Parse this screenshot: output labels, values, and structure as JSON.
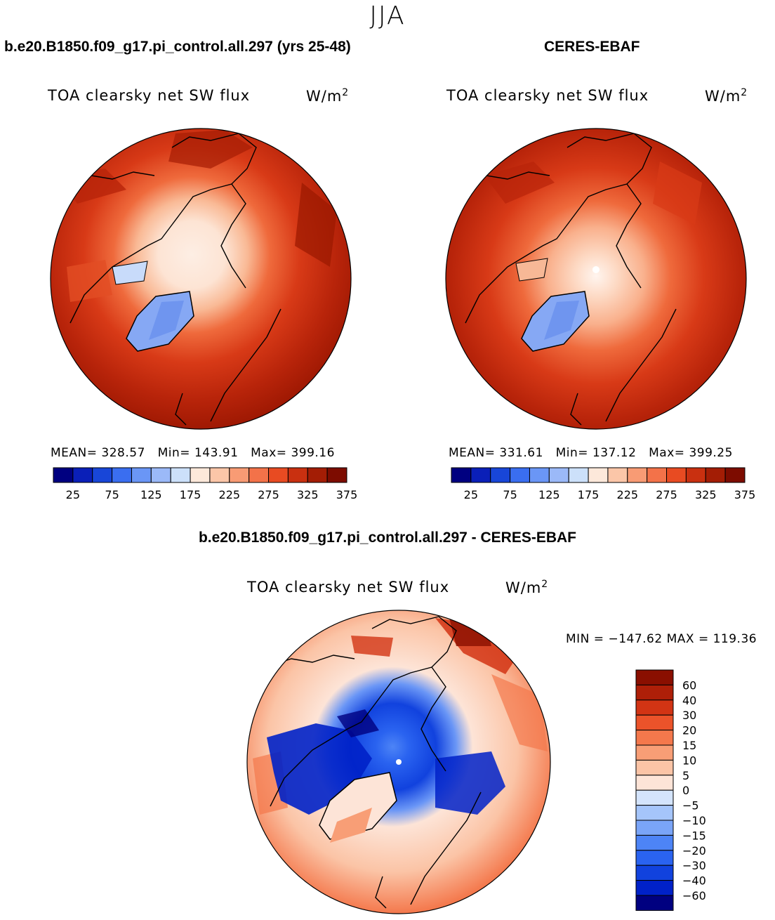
{
  "season": "JJA",
  "colors": {
    "div_scale": [
      "#000080",
      "#0021c8",
      "#1142de",
      "#2a63f0",
      "#4d84f6",
      "#7aa5f8",
      "#a5c5fa",
      "#d4e4fc",
      "#fde4d7",
      "#fbc4a6",
      "#f89e76",
      "#f4784c",
      "#eb532a",
      "#d23414",
      "#ae1f08",
      "#8a0f00"
    ],
    "flux_scale": [
      "#000080",
      "#0a1fb8",
      "#1846d8",
      "#3a6ef0",
      "#6a96f6",
      "#9bb9f8",
      "#cce0fa",
      "#fde8da",
      "#fbc6a8",
      "#f89b74",
      "#f37249",
      "#e84b22",
      "#c93010",
      "#a31d05",
      "#7d0c00"
    ]
  },
  "panels": {
    "model": {
      "title": "b.e20.B1850.f09_g17.pi_control.all.297 (yrs 25-48)",
      "variable": "TOA clearsky net SW flux",
      "units": "W/m",
      "units_exp": "2",
      "mean_label": "MEAN=",
      "mean": "328.57",
      "min_label": "Min=",
      "min": "143.91",
      "max_label": "Max=",
      "max": "399.16"
    },
    "obs": {
      "title": "CERES-EBAF",
      "variable": "TOA clearsky net SW flux",
      "units": "W/m",
      "units_exp": "2",
      "mean_label": "MEAN=",
      "mean": "331.61",
      "min_label": "Min=",
      "min": "137.12",
      "max_label": "Max=",
      "max": "399.25"
    },
    "diff": {
      "title": "b.e20.B1850.f09_g17.pi_control.all.297 - CERES-EBAF",
      "variable": "TOA clearsky net SW flux",
      "units": "W/m",
      "units_exp": "2",
      "min_label": "MIN =",
      "min": "−147.62",
      "max_label": "MAX =",
      "max": "119.36"
    }
  },
  "chart_data": [
    {
      "type": "heatmap",
      "projection": "north polar stereographic",
      "title": "b.e20.B1850.f09_g17.pi_control.all.297 (yrs 25-48)",
      "variable": "TOA clearsky net SW flux",
      "units": "W/m2",
      "stats": {
        "mean": 328.57,
        "min": 143.91,
        "max": 399.16
      },
      "colorbar_levels": [
        25,
        50,
        75,
        100,
        125,
        150,
        175,
        200,
        225,
        250,
        275,
        300,
        325,
        350,
        375
      ],
      "colorbar_tick_labels": [
        "25",
        "75",
        "125",
        "175",
        "225",
        "275",
        "325",
        "375"
      ]
    },
    {
      "type": "heatmap",
      "projection": "north polar stereographic",
      "title": "CERES-EBAF",
      "variable": "TOA clearsky net SW flux",
      "units": "W/m2",
      "stats": {
        "mean": 331.61,
        "min": 137.12,
        "max": 399.25
      },
      "colorbar_levels": [
        25,
        50,
        75,
        100,
        125,
        150,
        175,
        200,
        225,
        250,
        275,
        300,
        325,
        350,
        375
      ],
      "colorbar_tick_labels": [
        "25",
        "75",
        "125",
        "175",
        "225",
        "275",
        "325",
        "375"
      ]
    },
    {
      "type": "heatmap",
      "projection": "north polar stereographic",
      "title": "b.e20.B1850.f09_g17.pi_control.all.297 - CERES-EBAF",
      "variable": "TOA clearsky net SW flux",
      "units": "W/m2",
      "stats": {
        "min": -147.62,
        "max": 119.36
      },
      "colorbar_levels": [
        60,
        40,
        30,
        20,
        15,
        10,
        5,
        0,
        -5,
        -10,
        -15,
        -20,
        -30,
        -40,
        -60
      ],
      "colorbar_tick_labels": [
        "60",
        "40",
        "30",
        "20",
        "15",
        "10",
        "5",
        "0",
        "−5",
        "−10",
        "−15",
        "−20",
        "−30",
        "−40",
        "−60"
      ]
    }
  ]
}
